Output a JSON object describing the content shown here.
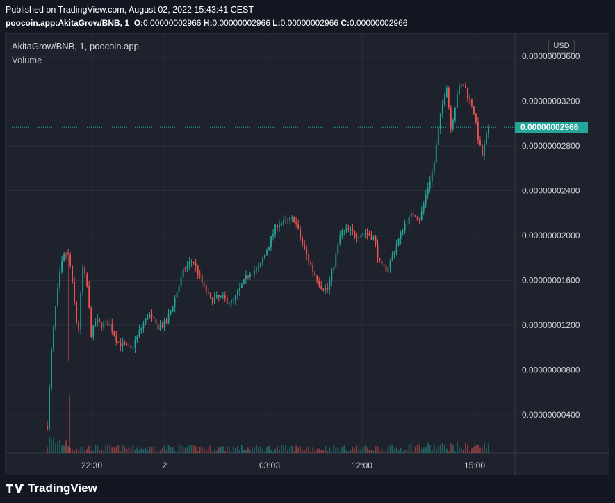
{
  "header": {
    "published": "Published on TradingView.com, August 02, 2022 15:43:41 CEST",
    "symbol_line": "poocoin.app:AkitaGrow/BNB, 1",
    "o_label": "O:",
    "o_value": "0.00000002966",
    "h_label": "H:",
    "h_value": "0.00000002966",
    "l_label": "L:",
    "l_value": "0.00000002966",
    "c_label": "C:",
    "c_value": "0.00000002966"
  },
  "legend": {
    "title": "AkitaGrow/BNB, 1, poocoin.app",
    "volume": "Volume"
  },
  "currency_button": "USD",
  "last_price_label": "0.00000002966",
  "brand": "TradingView",
  "colors": {
    "up": "#26a69a",
    "down": "#ef5350",
    "background": "#1e222d",
    "grid": "#2a2e39",
    "axis_text": "#d1d4dc"
  },
  "chart_data": {
    "type": "candlestick",
    "title": "AkitaGrow/BNB, 1, poocoin.app",
    "interval": "1",
    "y_ticks": [
      "0.00000000400",
      "0.00000000800",
      "0.00000001200",
      "0.00000001600",
      "0.00000002000",
      "0.00000002400",
      "0.00000002800",
      "0.00000003200",
      "0.00000003600"
    ],
    "y_tick_values": [
      4e-09,
      8e-09,
      1.2e-08,
      1.6e-08,
      2e-08,
      2.4e-08,
      2.8e-08,
      3.2e-08,
      3.6e-08
    ],
    "ylim": [
      0,
      3.7e-08
    ],
    "x_ticks": [
      "22:30",
      "2",
      "03:03",
      "12:00",
      "15:00"
    ],
    "grid": true,
    "last_price": 2.966e-08,
    "volume_series": true,
    "close_path": [
      {
        "t": 0.0,
        "v": 3e-09
      },
      {
        "t": 0.01,
        "v": 1e-08
      },
      {
        "t": 0.02,
        "v": 1.4e-08
      },
      {
        "t": 0.03,
        "v": 1.7e-08
      },
      {
        "t": 0.04,
        "v": 1.85e-08
      },
      {
        "t": 0.05,
        "v": 1.8e-08
      },
      {
        "t": 0.06,
        "v": 1.45e-08
      },
      {
        "t": 0.07,
        "v": 1.1e-08
      },
      {
        "t": 0.08,
        "v": 1.72e-08
      },
      {
        "t": 0.09,
        "v": 1.55e-08
      },
      {
        "t": 0.1,
        "v": 1.1e-08
      },
      {
        "t": 0.11,
        "v": 1.25e-08
      },
      {
        "t": 0.12,
        "v": 1.2e-08
      },
      {
        "t": 0.14,
        "v": 1.22e-08
      },
      {
        "t": 0.16,
        "v": 1.05e-08
      },
      {
        "t": 0.19,
        "v": 9.8e-09
      },
      {
        "t": 0.21,
        "v": 1.15e-08
      },
      {
        "t": 0.23,
        "v": 1.3e-08
      },
      {
        "t": 0.25,
        "v": 1.18e-08
      },
      {
        "t": 0.27,
        "v": 1.22e-08
      },
      {
        "t": 0.29,
        "v": 1.45e-08
      },
      {
        "t": 0.31,
        "v": 1.7e-08
      },
      {
        "t": 0.33,
        "v": 1.78e-08
      },
      {
        "t": 0.35,
        "v": 1.58e-08
      },
      {
        "t": 0.37,
        "v": 1.42e-08
      },
      {
        "t": 0.39,
        "v": 1.45e-08
      },
      {
        "t": 0.42,
        "v": 1.4e-08
      },
      {
        "t": 0.44,
        "v": 1.55e-08
      },
      {
        "t": 0.46,
        "v": 1.68e-08
      },
      {
        "t": 0.48,
        "v": 1.7e-08
      },
      {
        "t": 0.5,
        "v": 1.9e-08
      },
      {
        "t": 0.52,
        "v": 2.1e-08
      },
      {
        "t": 0.54,
        "v": 2.12e-08
      },
      {
        "t": 0.56,
        "v": 2.15e-08
      },
      {
        "t": 0.58,
        "v": 1.9e-08
      },
      {
        "t": 0.6,
        "v": 1.7e-08
      },
      {
        "t": 0.62,
        "v": 1.55e-08
      },
      {
        "t": 0.635,
        "v": 1.52e-08
      },
      {
        "t": 0.65,
        "v": 1.75e-08
      },
      {
        "t": 0.665,
        "v": 2.02e-08
      },
      {
        "t": 0.68,
        "v": 2.05e-08
      },
      {
        "t": 0.7,
        "v": 2e-08
      },
      {
        "t": 0.72,
        "v": 2.03e-08
      },
      {
        "t": 0.74,
        "v": 1.98e-08
      },
      {
        "t": 0.755,
        "v": 1.72e-08
      },
      {
        "t": 0.77,
        "v": 1.7e-08
      },
      {
        "t": 0.79,
        "v": 1.9e-08
      },
      {
        "t": 0.81,
        "v": 2.1e-08
      },
      {
        "t": 0.83,
        "v": 2.2e-08
      },
      {
        "t": 0.845,
        "v": 2.15e-08
      },
      {
        "t": 0.86,
        "v": 2.4e-08
      },
      {
        "t": 0.875,
        "v": 2.6e-08
      },
      {
        "t": 0.89,
        "v": 3.05e-08
      },
      {
        "t": 0.905,
        "v": 3.35e-08
      },
      {
        "t": 0.915,
        "v": 2.95e-08
      },
      {
        "t": 0.93,
        "v": 3.3e-08
      },
      {
        "t": 0.945,
        "v": 3.35e-08
      },
      {
        "t": 0.955,
        "v": 3.22e-08
      },
      {
        "t": 0.965,
        "v": 3.15e-08
      },
      {
        "t": 0.975,
        "v": 2.9e-08
      },
      {
        "t": 0.985,
        "v": 2.7e-08
      },
      {
        "t": 1.0,
        "v": 2.966e-08
      }
    ]
  }
}
